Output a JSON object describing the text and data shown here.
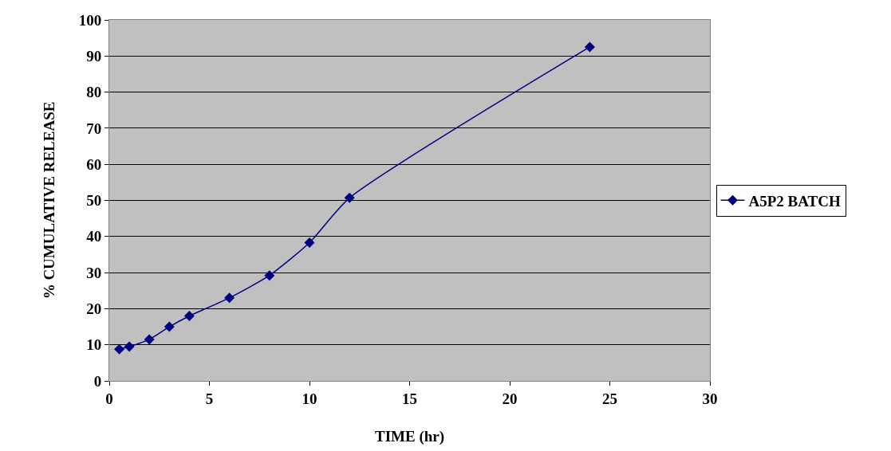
{
  "chart_data": {
    "type": "line",
    "xlabel": "TIME (hr)",
    "ylabel": "% CUMULATIVE RELEASE",
    "x": [
      0.5,
      1,
      2,
      3,
      4,
      6,
      8,
      10,
      12,
      24
    ],
    "series": [
      {
        "name": "A5P2 BATCH",
        "color": "#000080",
        "values": [
          8.8,
          9.5,
          11.5,
          15,
          18,
          23,
          29.2,
          38.3,
          50.7,
          92.5
        ]
      }
    ],
    "xlim": [
      0,
      30
    ],
    "xticks": [
      0,
      5,
      10,
      15,
      20,
      25,
      30
    ],
    "ylim": [
      0,
      100
    ],
    "yticks": [
      0,
      10,
      20,
      30,
      40,
      50,
      60,
      70,
      80,
      90,
      100
    ],
    "grid": "y",
    "legend": "right",
    "marker": "diamond",
    "line_style": "solid"
  }
}
